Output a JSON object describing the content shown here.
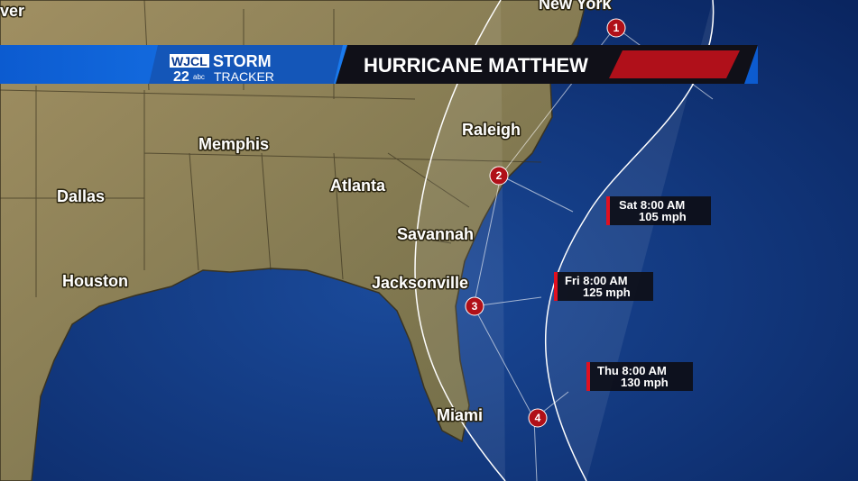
{
  "partial_label": "ver",
  "banner": {
    "station": "WJCL",
    "channel": "22",
    "network": "abc",
    "brand_top": "STORM",
    "brand_bottom": "TRACKER",
    "title": "HURRICANE MATTHEW"
  },
  "cities": [
    {
      "label": "New York"
    },
    {
      "label": "Memphis"
    },
    {
      "label": "Raleigh"
    },
    {
      "label": "Dallas"
    },
    {
      "label": "Atlanta"
    },
    {
      "label": "Savannah"
    },
    {
      "label": "Houston"
    },
    {
      "label": "Jacksonville"
    },
    {
      "label": "Miami"
    }
  ],
  "forecasts": [
    {
      "time": "Sat 8:00 AM",
      "wind": "105 mph"
    },
    {
      "time": "Fri 8:00 AM",
      "wind": "125 mph"
    },
    {
      "time": "Thu 8:00 AM",
      "wind": "130 mph"
    }
  ],
  "storm_markers": [
    1,
    2,
    3,
    4
  ]
}
